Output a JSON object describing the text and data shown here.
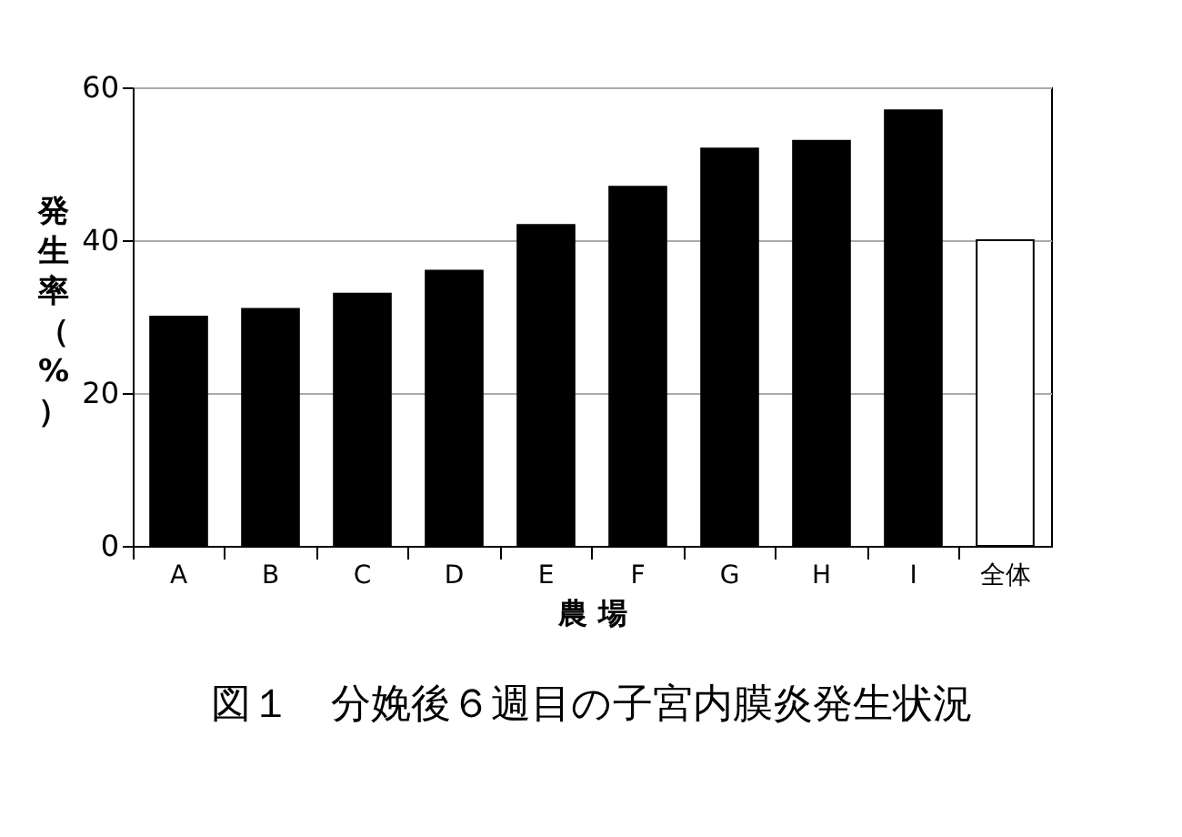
{
  "chart_data": {
    "type": "bar",
    "title": "図１　分娩後６週目の子宮内膜炎発生状況",
    "xlabel": "農 場",
    "ylabel": "発生率（%）",
    "categories": [
      "A",
      "B",
      "C",
      "D",
      "E",
      "F",
      "G",
      "H",
      "I",
      "全体"
    ],
    "values": [
      30,
      31,
      33,
      36,
      42,
      47,
      52,
      53,
      57,
      40
    ],
    "colors": [
      "#000000",
      "#000000",
      "#000000",
      "#000000",
      "#000000",
      "#000000",
      "#000000",
      "#000000",
      "#000000",
      "#ffffff"
    ],
    "ylim": [
      0,
      60
    ],
    "yticks": [
      0,
      20,
      40,
      60
    ],
    "grid": "y"
  }
}
